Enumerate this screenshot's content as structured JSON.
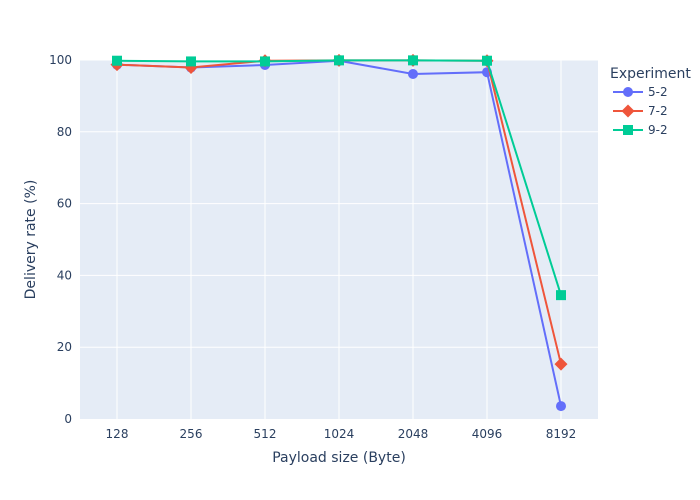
{
  "chart_data": {
    "type": "line",
    "categories": [
      "128",
      "256",
      "512",
      "1024",
      "2048",
      "4096",
      "8192"
    ],
    "xlabel": "Payload size (Byte)",
    "ylabel": "Delivery rate (%)",
    "ylim": [
      0,
      100
    ],
    "yticks": [
      0,
      20,
      40,
      60,
      80,
      100
    ],
    "grid": true,
    "legend_title": "Experiment",
    "legend_position": "top-right-outside",
    "series": [
      {
        "name": "5-2",
        "marker": "circle",
        "color": "#636efa",
        "values": [
          98.7,
          97.9,
          98.6,
          99.8,
          96.1,
          96.6,
          3.6
        ]
      },
      {
        "name": "7-2",
        "marker": "diamond",
        "color": "#ef553b",
        "values": [
          98.7,
          97.9,
          99.8,
          99.9,
          99.9,
          99.8,
          15.3
        ]
      },
      {
        "name": "9-2",
        "marker": "square",
        "color": "#00cc96",
        "values": [
          99.8,
          99.6,
          99.6,
          99.9,
          99.9,
          99.8,
          34.5
        ]
      }
    ]
  }
}
